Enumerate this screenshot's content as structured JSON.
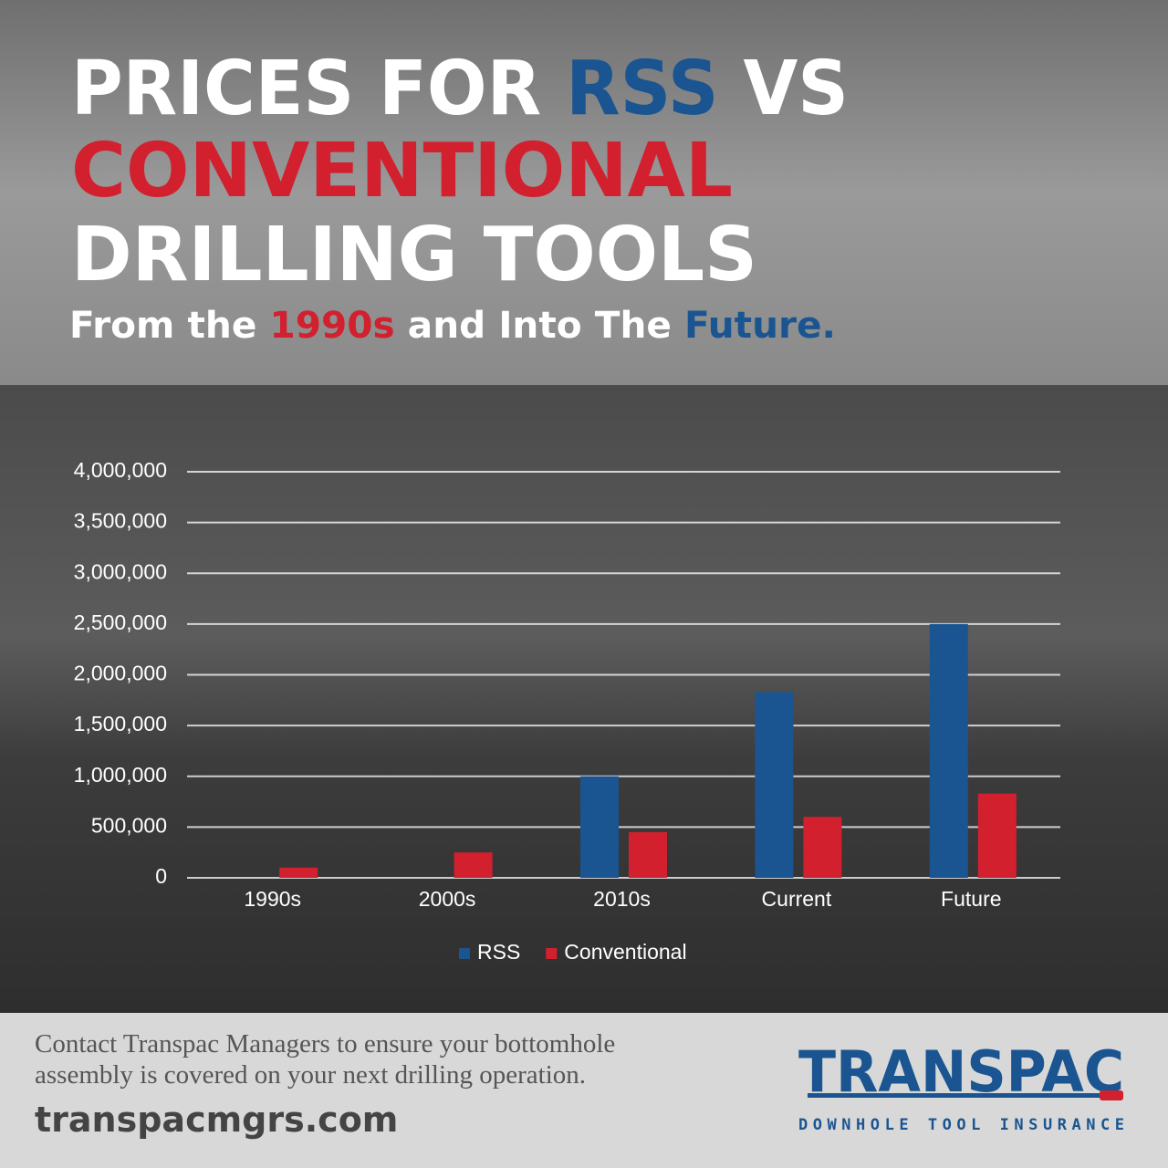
{
  "chart_data": {
    "type": "bar",
    "title": [
      [
        "PRICES FOR ",
        "RSS",
        " VS"
      ],
      [
        "CONVENTIONAL"
      ],
      [
        "DRILLING TOOLS"
      ]
    ],
    "subtitle": [
      "From the ",
      "1990s",
      " and Into The ",
      "Future."
    ],
    "categories": [
      "1990s",
      "2000s",
      "2010s",
      "Current",
      "Future"
    ],
    "series": [
      {
        "name": "RSS",
        "color": "#1a5591",
        "values": [
          0,
          0,
          1000000,
          1830000,
          2500000
        ]
      },
      {
        "name": "Conventional",
        "color": "#d2202f",
        "values": [
          100000,
          250000,
          450000,
          600000,
          830000
        ]
      }
    ],
    "ylim": [
      0,
      4000000
    ],
    "yticks": [
      0,
      {
        "value": 500000,
        "label": "500,000"
      },
      {
        "value": 1000000,
        "label": "1,000,000"
      },
      {
        "value": 1500000,
        "label": "1,500,000"
      },
      {
        "value": 2000000,
        "label": "2,000,000"
      },
      {
        "value": 2500000,
        "label": "2,500,000"
      },
      {
        "value": 3000000,
        "label": "3,000,000"
      },
      {
        "value": 3500000,
        "label": "3,500,000"
      },
      {
        "value": 4000000,
        "label": "4,000,000"
      }
    ],
    "grid": true,
    "legend": "bottom"
  },
  "footer": {
    "text": [
      "Contact Transpac Managers to ensure your bottomhole",
      "assembly is covered on your next drilling operation."
    ],
    "url": "transpacmgrs.com",
    "logo": {
      "name": "TRANSPAC",
      "tagline": "DOWNHOLE TOOL INSURANCE"
    }
  }
}
